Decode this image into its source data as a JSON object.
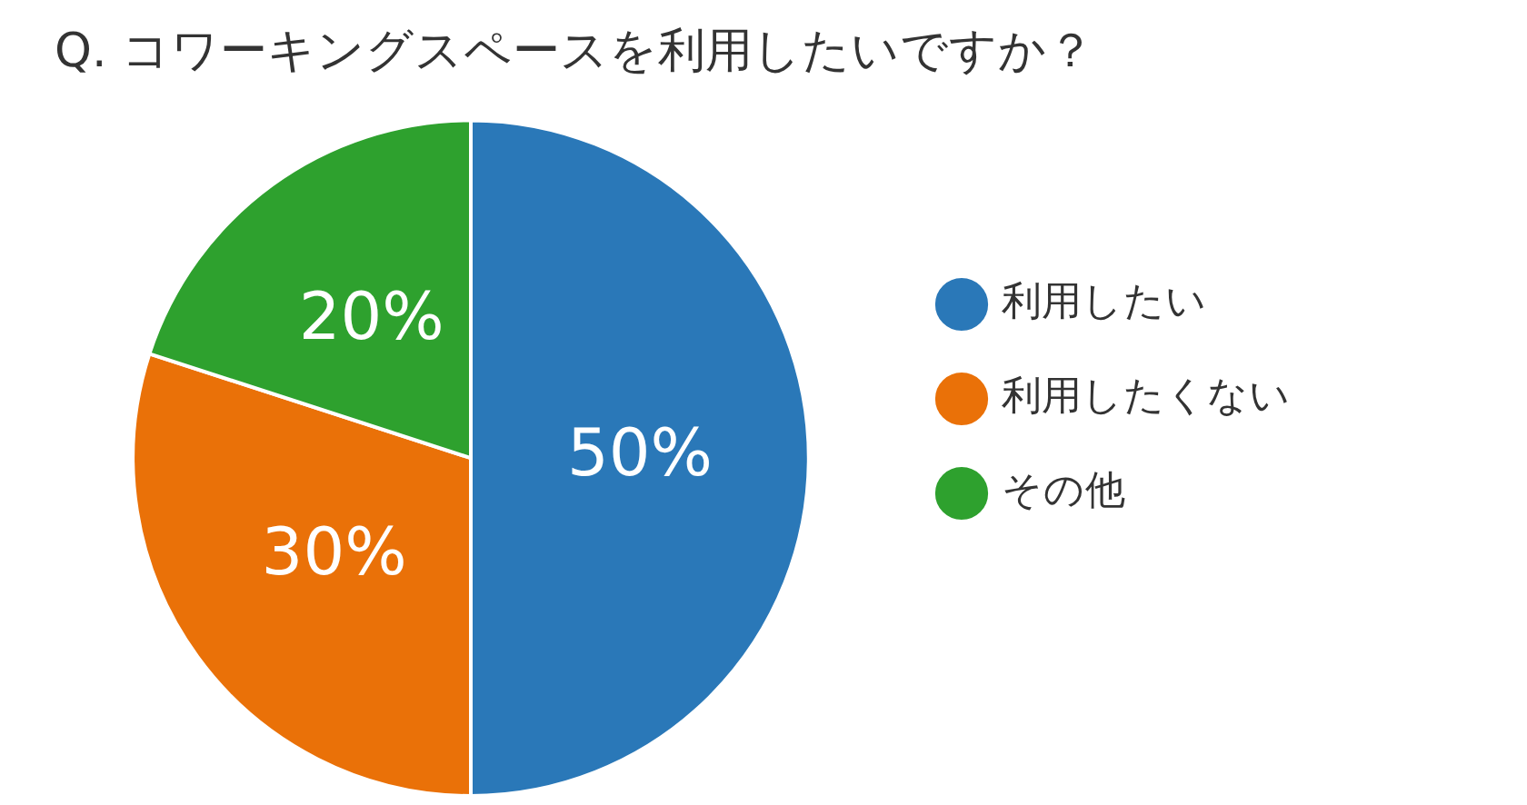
{
  "chart_data": {
    "type": "pie",
    "title": "Q. コワーキングスペースを利用したいですか？",
    "categories": [
      "利用したい",
      "利用したくない",
      "その他"
    ],
    "values": [
      50,
      30,
      20
    ],
    "colors": [
      "#2a78b8",
      "#ea7108",
      "#2ea12e"
    ],
    "value_labels": [
      "50%",
      "30%",
      "20%"
    ],
    "legend": "right"
  }
}
